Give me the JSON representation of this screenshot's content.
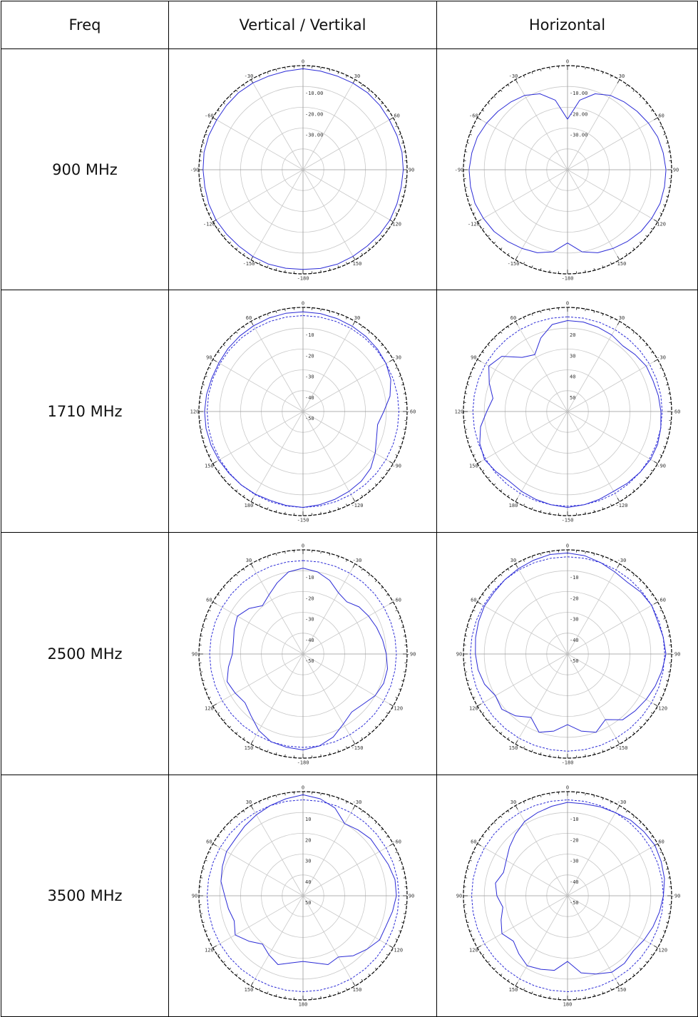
{
  "headers": {
    "freq": "Freq",
    "vertical": "Vertical / Vertikal",
    "horizontal": "Horizontal"
  },
  "colors": {
    "trace": "#2b2bd6",
    "grid": "#c8c8c8",
    "outer": "#000000"
  },
  "rows": [
    {
      "freq": "900 MHz",
      "vertical": {
        "angle_labels": [
          "0",
          "30",
          "60",
          "90",
          "120",
          "150",
          "-180",
          "-150",
          "-120",
          "-90",
          "-60",
          "-30"
        ],
        "radial_labels": [
          "-10.00",
          "-20.00",
          "-30.00"
        ],
        "series": [
          {
            "style": "solid",
            "values": [
              0,
              -0.3,
              -0.5,
              -0.4,
              -0.2,
              -0.3,
              -0.5,
              -0.4,
              -0.2,
              -0.3,
              -0.5,
              -0.4,
              -0.2,
              -0.3,
              -0.5,
              -0.4,
              -0.2,
              -0.3,
              -0.5,
              -0.4,
              -0.2,
              -0.3,
              -0.5,
              -0.4,
              -0.2,
              -0.3,
              -0.5,
              -0.4,
              -0.2,
              -0.3,
              -0.5,
              -0.4,
              -0.2,
              -0.3,
              -0.5,
              -0.4
            ]
          }
        ]
      },
      "horizontal": {
        "angle_labels": [
          "0",
          "30",
          "60",
          "90",
          "120",
          "150",
          "-180",
          "-150",
          "-120",
          "-90",
          "-60",
          "-30"
        ],
        "radial_labels": [
          "-10.00",
          "-20.00",
          "-30.00"
        ],
        "series": [
          {
            "style": "solid",
            "values": [
              -20,
              -12,
              -8,
              -6,
              -5,
              -4,
              -3,
              -2,
              -1.5,
              -1,
              -1,
              -1,
              -1.5,
              -2,
              -3,
              -4,
              -5,
              -7,
              -11,
              -7,
              -5,
              -4,
              -3,
              -2,
              -1.5,
              -1,
              -1,
              -1,
              -1.5,
              -2,
              -3,
              -4,
              -5,
              -6,
              -8,
              -12
            ]
          }
        ]
      }
    },
    {
      "freq": "1710 MHz",
      "vertical": {
        "angle_labels": [
          "0",
          "30",
          "-30",
          "-60",
          "-90",
          "-120",
          "-150",
          "180",
          "150",
          "120",
          "90",
          "60"
        ],
        "radial_labels": [
          "-10",
          "-20",
          "-30",
          "-40",
          "-50"
        ],
        "series": [
          {
            "style": "solid",
            "values": [
              -0.5,
              -0.6,
              -0.8,
              -1,
              -1.2,
              -1.5,
              -2,
              -3,
              -5,
              -8,
              -10,
              -9,
              -7,
              -5,
              -4,
              -3.5,
              -3,
              -2.5,
              -2,
              -2.2,
              -2.5,
              -2.2,
              -2,
              -1.8,
              -1.5,
              -1.2,
              -1,
              -1,
              -1.2,
              -1.5,
              -1.5,
              -1.2,
              -1,
              -0.8,
              -0.6,
              -0.5
            ]
          },
          {
            "style": "dashed",
            "values": [
              -2,
              -2,
              -2,
              -2,
              -2,
              -2,
              -2,
              -2,
              -2,
              -2,
              -2,
              -2,
              -2,
              -2,
              -2,
              -2,
              -2,
              -2,
              -2,
              -2,
              -2,
              -2,
              -2,
              -2,
              -2,
              -2,
              -2,
              -2,
              -2,
              -2,
              -2,
              -2,
              -2,
              -2,
              -2,
              -2
            ]
          }
        ]
      },
      "horizontal": {
        "angle_labels": [
          "0",
          "30",
          "-30",
          "-60",
          "-90",
          "-120",
          "-150",
          "180",
          "150",
          "120",
          "90",
          "60"
        ],
        "radial_labels": [
          "20",
          "30",
          "40",
          "50"
        ],
        "series": [
          {
            "style": "solid",
            "values": [
              -4,
              -4,
              -4.5,
              -5,
              -6,
              -5,
              -4,
              -4,
              -3.5,
              -3,
              -2.5,
              -2,
              -2,
              -2.5,
              -3,
              -3.5,
              -3,
              -2.5,
              -2,
              -2.5,
              -3,
              -3.5,
              -4,
              -3,
              -2,
              -3,
              -5,
              -8,
              -10,
              -7,
              -4,
              -6,
              -12,
              -14,
              -9,
              -5
            ]
          },
          {
            "style": "dashed",
            "values": [
              -2.5,
              -2.5,
              -2.5,
              -2.5,
              -2.5,
              -2.5,
              -2.5,
              -2.5,
              -2.5,
              -2.5,
              -2.5,
              -2.5,
              -2.5,
              -2.5,
              -2.5,
              -2.5,
              -2.5,
              -2.5,
              -2.5,
              -2.5,
              -2.5,
              -2.5,
              -2.5,
              -2.5,
              -2.5,
              -2.5,
              -2.5,
              -2.5,
              -2.5,
              -2.5,
              -2.5,
              -2.5,
              -2.5,
              -2.5,
              -2.5,
              -2.5
            ]
          }
        ]
      }
    },
    {
      "freq": "2500 MHz",
      "vertical": {
        "angle_labels": [
          "0",
          "-30",
          "-60",
          "-90",
          "-120",
          "-150",
          "-180",
          "150",
          "120",
          "90",
          "60",
          "30"
        ],
        "radial_labels": [
          "-10",
          "-20",
          "-30",
          "-40",
          "-50"
        ],
        "series": [
          {
            "style": "solid",
            "values": [
              -6,
              -7,
              -9,
              -12,
              -13,
              -11,
              -10,
              -9,
              -8,
              -7,
              -6,
              -6,
              -7,
              -9,
              -10,
              -8,
              -5,
              -3,
              -2,
              -2.5,
              -3,
              -5,
              -8,
              -10,
              -9,
              -8,
              -10,
              -12,
              -12,
              -11,
              -10,
              -12,
              -15,
              -13,
              -10,
              -7
            ]
          },
          {
            "style": "dashed",
            "values": [
              -3,
              -3,
              -3,
              -3,
              -3,
              -3,
              -3,
              -3,
              -3,
              -3,
              -3,
              -3,
              -3,
              -3,
              -3,
              -3,
              -3,
              -3,
              -3,
              -3,
              -3,
              -3,
              -3,
              -3,
              -3,
              -3,
              -3,
              -3,
              -3,
              -3,
              -3,
              -3,
              -3,
              -3,
              -3,
              -3
            ]
          }
        ]
      },
      "horizontal": {
        "angle_labels": [
          "0",
          "-30",
          "-60",
          "-90",
          "-120",
          "-150",
          "-180",
          "150",
          "120",
          "90",
          "60",
          "30"
        ],
        "radial_labels": [
          "-10",
          "-20",
          "-30",
          "-40",
          "-50"
        ],
        "series": [
          {
            "style": "solid",
            "values": [
              0,
              -0.5,
              -1.5,
              -2.5,
              -3,
              -2,
              -1.5,
              -2,
              -1.5,
              -1,
              -2,
              -3,
              -4,
              -5,
              -6,
              -10,
              -7,
              -9,
              -12,
              -9,
              -7,
              -11,
              -8,
              -6,
              -7,
              -5,
              -4,
              -3.5,
              -3,
              -2.5,
              -2,
              -2,
              -1.5,
              -1,
              -0.5,
              0
            ]
          },
          {
            "style": "dashed",
            "values": [
              -1.5,
              -1.5,
              -1.5,
              -1.5,
              -1.5,
              -1.5,
              -1.5,
              -1.5,
              -1.5,
              -1.5,
              -1.5,
              -1.5,
              -1.5,
              -1.5,
              -1.5,
              -1.5,
              -1.5,
              -1.5,
              -1.5,
              -1.5,
              -1.5,
              -1.5,
              -1.5,
              -1.5,
              -1.5,
              -1.5,
              -1.5,
              -1.5,
              -1.5,
              -1.5,
              -1.5,
              -1.5,
              -1.5,
              -1.5,
              -1.5,
              -1.5
            ]
          }
        ]
      }
    },
    {
      "freq": "3500 MHz",
      "vertical": {
        "angle_labels": [
          "0",
          "-30",
          "-60",
          "90",
          "-120",
          "150",
          "180",
          "150",
          "120",
          "90",
          "60",
          "30"
        ],
        "radial_labels": [
          "10",
          "20",
          "30",
          "40",
          "50"
        ],
        "series": [
          {
            "style": "solid",
            "values": [
              0,
              -1,
              -3,
              -7,
              -6,
              -5,
              -5,
              -4,
              -3,
              -3,
              -4,
              -5,
              -5,
              -7,
              -9,
              -12,
              -11,
              -13,
              -14,
              -13,
              -11,
              -13,
              -15,
              -12,
              -9,
              -11,
              -10,
              -9,
              -7,
              -6,
              -5,
              -5,
              -4,
              -3,
              -2,
              -1
            ]
          },
          {
            "style": "dashed",
            "values": [
              -2,
              -2,
              -2,
              -2,
              -2,
              -2,
              -2,
              -2,
              -2,
              -2,
              -2,
              -2,
              -2,
              -2,
              -2,
              -2,
              -2,
              -2,
              -2,
              -2,
              -2,
              -2,
              -2,
              -2,
              -2,
              -2,
              -2,
              -2,
              -2,
              -2,
              -2,
              -2,
              -2,
              -2,
              -2,
              -2
            ]
          }
        ]
      },
      "horizontal": {
        "angle_labels": [
          "0",
          "-30",
          "60",
          "-90",
          "-120",
          "150",
          "180",
          "150",
          "120",
          "90",
          "60",
          "30"
        ],
        "radial_labels": [
          "-10",
          "-20",
          "-30",
          "-40",
          "-50"
        ],
        "series": [
          {
            "style": "solid",
            "values": [
              -3,
              -3,
              -2.5,
              -2,
              -1,
              -0.5,
              0,
              -0.5,
              -1,
              -2,
              -3,
              -4,
              -5,
              -6,
              -5,
              -5,
              -7,
              -9,
              -14,
              -10,
              -9,
              -8,
              -10,
              -12,
              -10,
              -12,
              -14,
              -12,
              -11,
              -13,
              -12,
              -10,
              -8,
              -6,
              -5,
              -4
            ]
          },
          {
            "style": "dashed",
            "values": [
              -2,
              -2,
              -2,
              -2,
              -2,
              -2,
              -2,
              -2,
              -2,
              -2,
              -2,
              -2,
              -2,
              -2,
              -2,
              -2,
              -2,
              -2,
              -2,
              -2,
              -2,
              -2,
              -2,
              -2,
              -2,
              -2,
              -2,
              -2,
              -2,
              -2,
              -2,
              -2,
              -2,
              -2,
              -2,
              -2
            ]
          }
        ]
      }
    }
  ]
}
